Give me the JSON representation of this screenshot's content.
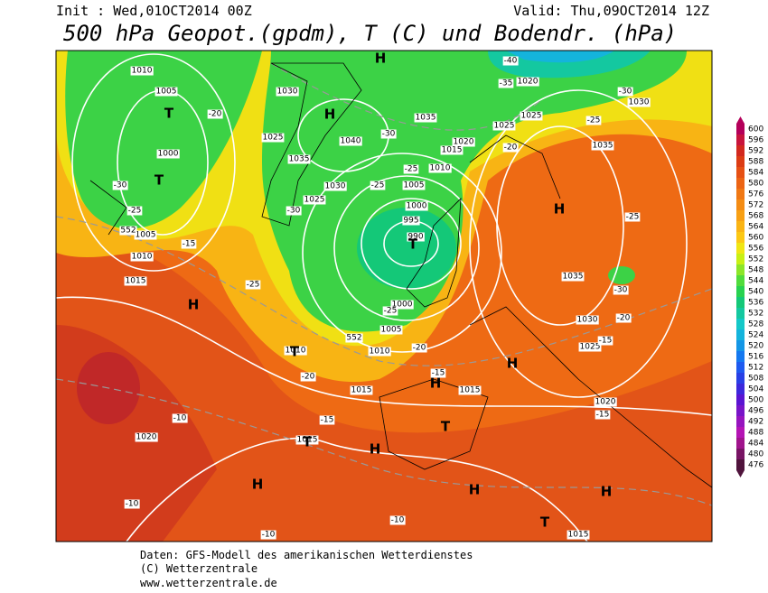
{
  "header": {
    "init": "Init : Wed,01OCT2014 00Z",
    "valid": "Valid: Thu,09OCT2014 12Z",
    "title": "500 hPa Geopot.(gpdm), T (C) und Bodendr. (hPa)"
  },
  "legend": {
    "ticks": [
      600,
      596,
      592,
      588,
      584,
      580,
      576,
      572,
      568,
      564,
      560,
      556,
      552,
      548,
      544,
      540,
      536,
      532,
      528,
      524,
      520,
      516,
      512,
      508,
      504,
      500,
      496,
      492,
      488,
      484,
      480,
      476
    ],
    "colors": [
      "#b4005a",
      "#c8143c",
      "#d2281e",
      "#dc3c14",
      "#e65014",
      "#ec6414",
      "#f07814",
      "#f48c14",
      "#f8a014",
      "#fab414",
      "#fcc814",
      "#f0e614",
      "#c8f014",
      "#8ce628",
      "#50dc3c",
      "#28d250",
      "#14c878",
      "#14c8a0",
      "#14c8c8",
      "#14b4dc",
      "#1496e6",
      "#1478f0",
      "#1e5af0",
      "#2840e6",
      "#3c28dc",
      "#5a14d2",
      "#7814c8",
      "#9614be",
      "#b414b4",
      "#a0148c",
      "#781464",
      "#50143c"
    ]
  },
  "map": {
    "pressure_labels": [
      "1010",
      "1005",
      "1000",
      "1005",
      "1010",
      "1015",
      "1030",
      "1025",
      "1035",
      "1040",
      "1030",
      "1025",
      "1035",
      "1020",
      "1025",
      "1030",
      "1025",
      "1020",
      "1015",
      "1010",
      "1005",
      "1000",
      "995",
      "990",
      "1000",
      "1005",
      "1010",
      "1010",
      "1015",
      "1015",
      "1035",
      "1035",
      "1030",
      "1025",
      "1020",
      "1020",
      "1015",
      "1015"
    ],
    "temperature_labels": [
      "-40",
      "-35",
      "-30",
      "-25",
      "-20",
      "-30",
      "-25",
      "-25",
      "-20",
      "-30",
      "-25",
      "-15",
      "-30",
      "-25",
      "-25",
      "-20",
      "-20",
      "-15",
      "-15",
      "-10",
      "-10",
      "-10",
      "-10",
      "-25",
      "-30",
      "-20",
      "-15",
      "-15",
      "552",
      "552"
    ],
    "symbols": [
      "H",
      "T",
      "H",
      "T",
      "T",
      "H",
      "H",
      "T",
      "H",
      "H",
      "T",
      "H",
      "T",
      "H",
      "H",
      "H",
      "T"
    ]
  },
  "footer": {
    "source": "Daten: GFS-Modell des amerikanischen Wetterdienstes",
    "copyright": "(C) Wetterzentrale",
    "url": "www.wetterzentrale.de"
  }
}
